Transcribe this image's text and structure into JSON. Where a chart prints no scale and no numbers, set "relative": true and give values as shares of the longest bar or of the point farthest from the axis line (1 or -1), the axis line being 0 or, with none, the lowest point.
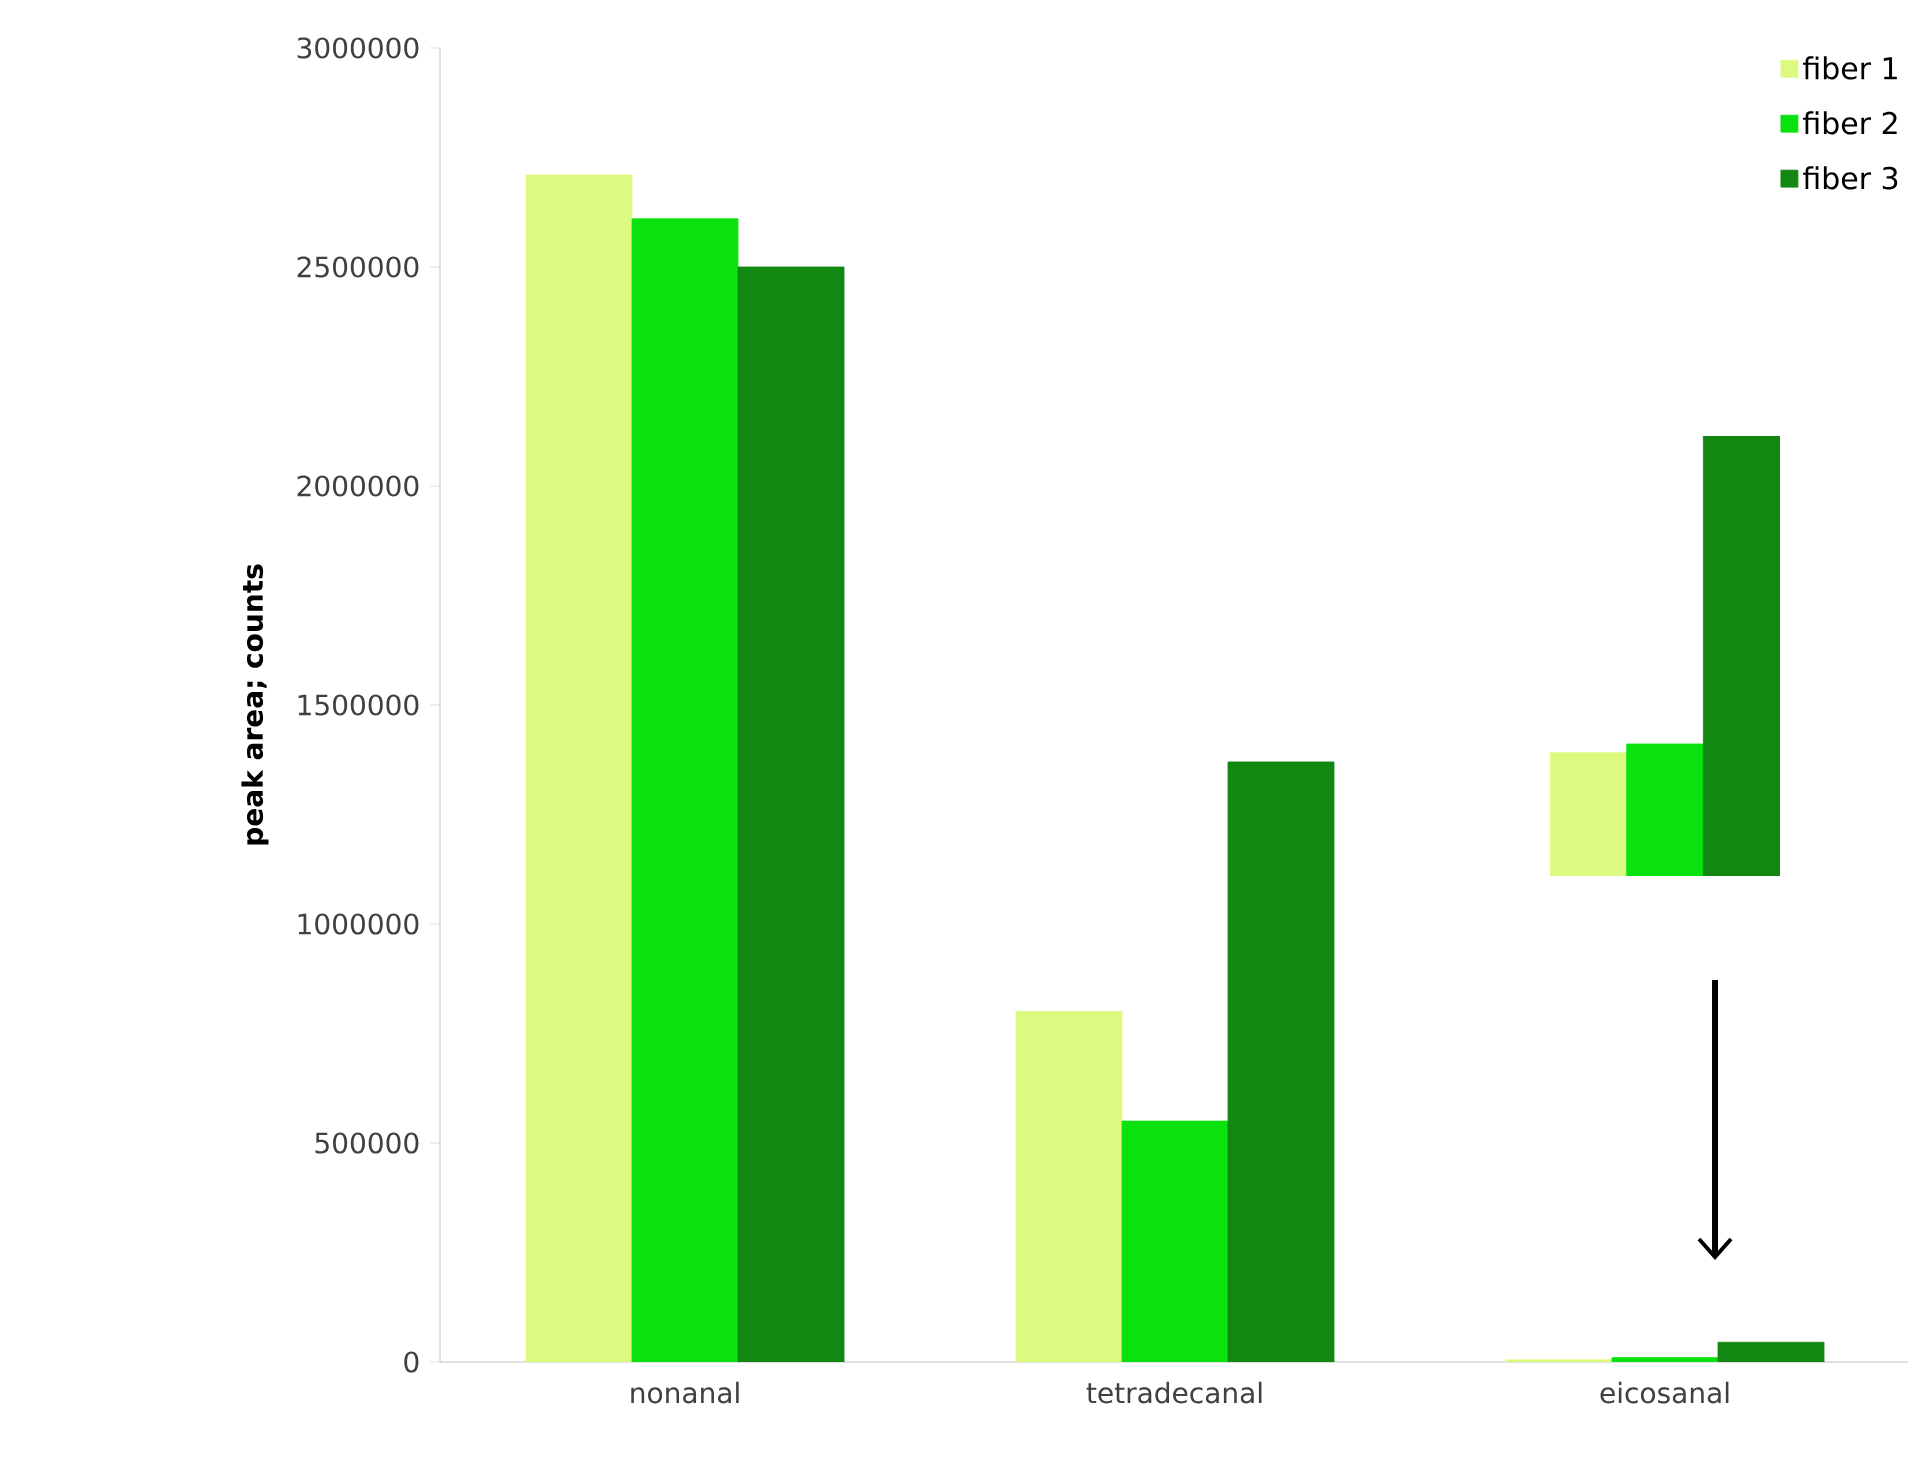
{
  "chart_data": [
    {
      "type": "bar",
      "ylabel": "peak area; counts",
      "categories": [
        "nonanal",
        "tetradecanal",
        "eicosanal"
      ],
      "series": [
        {
          "name": "fiber 1",
          "color": "#ddfa80",
          "values": [
            2710000,
            800000,
            5000
          ]
        },
        {
          "name": "fiber 2",
          "color": "#0ae20f",
          "values": [
            2610000,
            550000,
            10000
          ]
        },
        {
          "name": "fiber 3",
          "color": "#128712",
          "values": [
            2500000,
            1370000,
            45000
          ]
        }
      ],
      "ylim": [
        0,
        3000000
      ],
      "yticks": [
        0,
        500000,
        1000000,
        1500000,
        2000000,
        2500000,
        3000000
      ],
      "legend": "top right"
    },
    {
      "type": "bar",
      "relative": true,
      "categories": [
        null
      ],
      "series": [
        {
          "color": "#ddfa80",
          "values": [
            0.28
          ]
        },
        {
          "color": "#0ae20f",
          "values": [
            0.3
          ]
        },
        {
          "color": "#128712",
          "values": [
            1
          ]
        }
      ]
    }
  ]
}
